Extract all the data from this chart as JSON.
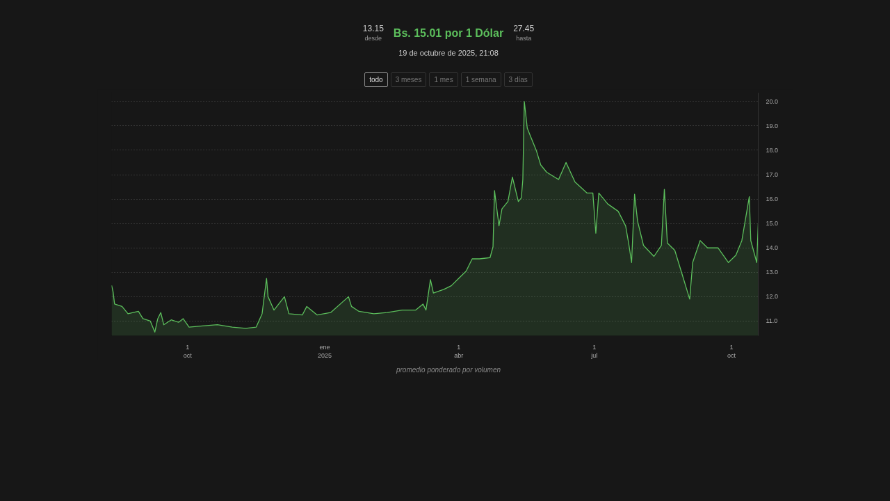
{
  "chart_data": {
    "type": "area",
    "title": "Bs. 15.01 por 1 Dólar",
    "subtitle": "19 de octubre de 2025, 21:08",
    "annotations": [
      "13.15 desde",
      "27.45 hasta",
      "todo",
      "3 meses",
      "1 mes",
      "1 semana",
      "3 días",
      "promedio ponderado por volumen"
    ],
    "x": [
      "2024-08-11",
      "2024-08-12",
      "2024-08-13",
      "2024-08-18",
      "2024-08-22",
      "2024-08-29",
      "2024-09-01",
      "2024-09-06",
      "2024-09-09",
      "2024-09-11",
      "2024-09-13",
      "2024-09-15",
      "2024-09-20",
      "2024-09-25",
      "2024-09-28",
      "2024-10-02",
      "2024-10-11",
      "2024-10-21",
      "2024-10-31",
      "2024-11-09",
      "2024-11-16",
      "2024-11-20",
      "2024-11-23",
      "2024-11-24",
      "2024-11-28",
      "2024-12-05",
      "2024-12-08",
      "2024-12-17",
      "2024-12-20",
      "2024-12-27",
      "2025-01-05",
      "2025-01-17",
      "2025-01-19",
      "2025-01-24",
      "2025-02-03",
      "2025-02-12",
      "2025-02-22",
      "2025-03-03",
      "2025-03-08",
      "2025-03-10",
      "2025-03-13",
      "2025-03-15",
      "2025-03-22",
      "2025-03-27",
      "2025-04-01",
      "2025-04-06",
      "2025-04-10",
      "2025-04-15",
      "2025-04-22",
      "2025-04-24",
      "2025-04-25",
      "2025-04-28",
      "2025-04-30",
      "2025-05-04",
      "2025-05-07",
      "2025-05-11",
      "2025-05-13",
      "2025-05-14",
      "2025-05-15",
      "2025-05-17",
      "2025-05-19",
      "2025-05-21",
      "2025-05-23",
      "2025-05-26",
      "2025-05-30",
      "2025-06-07",
      "2025-06-12",
      "2025-06-18",
      "2025-06-26",
      "2025-06-30",
      "2025-07-02",
      "2025-07-04",
      "2025-07-10",
      "2025-07-17",
      "2025-07-22",
      "2025-07-24",
      "2025-07-26",
      "2025-07-28",
      "2025-07-30",
      "2025-08-03",
      "2025-08-10",
      "2025-08-15",
      "2025-08-17",
      "2025-08-19",
      "2025-08-24",
      "2025-08-29",
      "2025-09-03",
      "2025-09-05",
      "2025-09-10",
      "2025-09-15",
      "2025-09-22",
      "2025-09-29",
      "2025-10-04",
      "2025-10-08",
      "2025-10-13",
      "2025-10-14",
      "2025-10-18",
      "2025-10-19"
    ],
    "series": [
      {
        "color": "#5cbf5c",
        "values": [
          12.46,
          12.2,
          11.7,
          11.6,
          11.3,
          11.4,
          11.1,
          11.0,
          10.55,
          11.1,
          11.35,
          10.85,
          11.05,
          10.95,
          11.1,
          10.75,
          10.8,
          10.85,
          10.75,
          10.7,
          10.75,
          11.3,
          12.75,
          12.0,
          11.45,
          12.0,
          11.3,
          11.25,
          11.6,
          11.25,
          11.35,
          12.0,
          11.6,
          11.4,
          11.3,
          11.35,
          11.45,
          11.45,
          11.7,
          11.45,
          12.7,
          12.15,
          12.3,
          12.45,
          12.75,
          13.05,
          13.55,
          13.55,
          13.6,
          14.05,
          16.35,
          14.9,
          15.6,
          15.9,
          16.9,
          15.9,
          16.05,
          16.8,
          20.0,
          18.9,
          18.6,
          18.3,
          18.0,
          17.4,
          17.1,
          16.8,
          17.5,
          16.7,
          16.25,
          16.25,
          14.6,
          16.25,
          15.8,
          15.5,
          14.9,
          14.2,
          13.4,
          16.2,
          15.1,
          14.1,
          13.65,
          14.1,
          16.4,
          14.2,
          13.9,
          12.9,
          11.9,
          13.4,
          14.3,
          14.0,
          14.0,
          13.4,
          13.7,
          14.3,
          16.1,
          14.3,
          13.4,
          15.0
        ]
      }
    ],
    "xlim": [
      "2024-08-11",
      "2025-10-19"
    ],
    "xticks": [
      {
        "value": "2024-10-01",
        "label": "1\noct"
      },
      {
        "value": "2025-01-01",
        "label": "ene\n2025"
      },
      {
        "value": "2025-04-01",
        "label": "1\nabr"
      },
      {
        "value": "2025-07-01",
        "label": "1\njul"
      },
      {
        "value": "2025-10-01",
        "label": "1\noct"
      }
    ],
    "ylim": [
      10.4,
      20.35
    ],
    "yticks": [
      {
        "value": 11,
        "label": "11.0"
      },
      {
        "value": 12,
        "label": "12.0"
      },
      {
        "value": 13,
        "label": "13.0"
      },
      {
        "value": 14,
        "label": "14.0"
      },
      {
        "value": 15,
        "label": "15.0"
      },
      {
        "value": 16,
        "label": "16.0"
      },
      {
        "value": 17,
        "label": "17.0"
      },
      {
        "value": 18,
        "label": "18.0"
      },
      {
        "value": 19,
        "label": "19.0"
      },
      {
        "value": 20,
        "label": "20.0"
      }
    ],
    "grid": "y"
  }
}
